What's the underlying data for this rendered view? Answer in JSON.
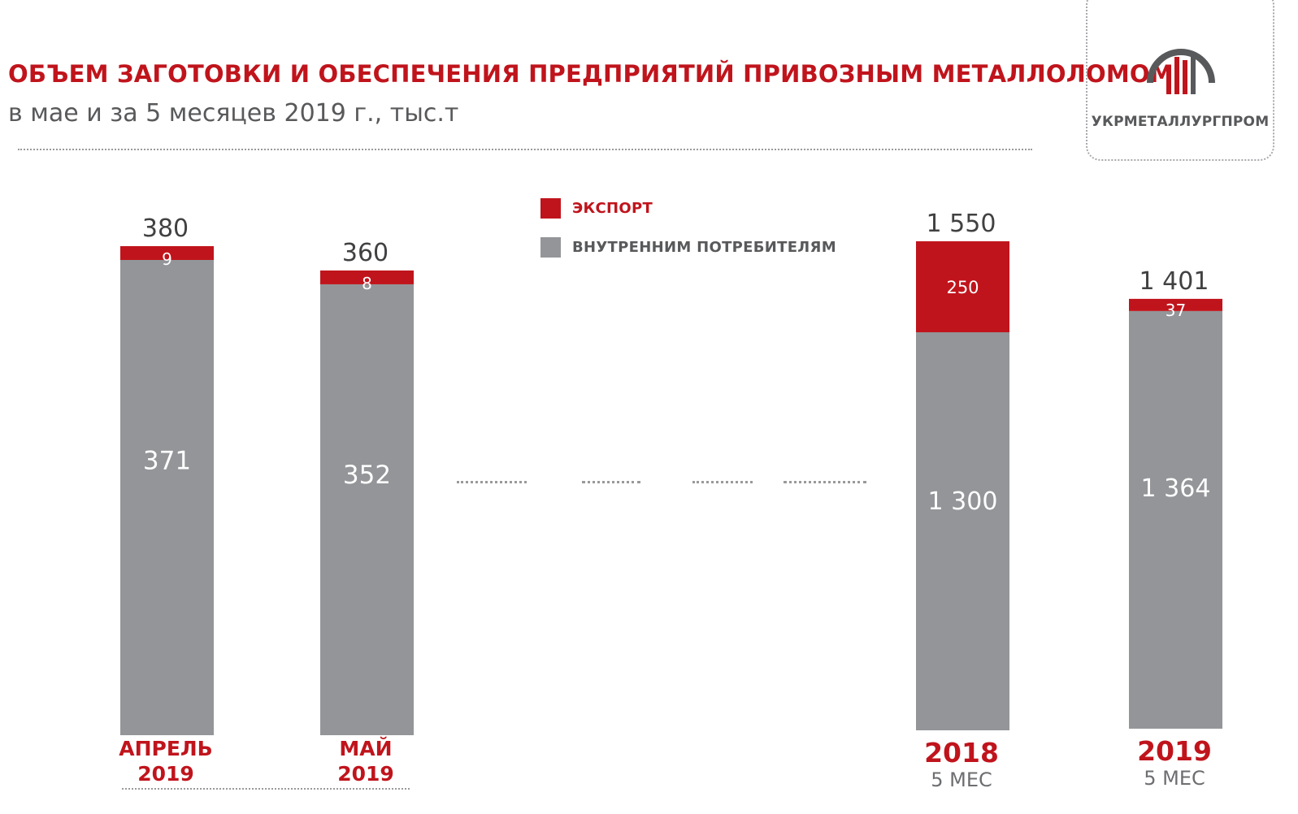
{
  "header": {
    "title": "ОБЪЕМ ЗАГОТОВКИ И ОБЕСПЕЧЕНИЯ ПРЕДПРИЯТИЙ ПРИВОЗНЫМ МЕТАЛЛОЛОМОМ",
    "subtitle": "в мае и за 5 месяцев 2019 г., тыс.т"
  },
  "logo": {
    "text": "УКРМЕТАЛЛУРГПРОМ",
    "icon": "ukrmetallurgprom-logo-icon"
  },
  "colors": {
    "export": "#c0141c",
    "domestic": "#939598",
    "title": "#c0141c",
    "text": "#58595b"
  },
  "chart_data": {
    "type": "bar",
    "stacked": true,
    "title": "ОБЪЕМ ЗАГОТОВКИ И ОБЕСПЕЧЕНИЯ ПРЕДПРИЯТИЙ ПРИВОЗНЫМ МЕТАЛЛОЛОМОМ",
    "subtitle": "в мае и за 5 месяцев 2019 г., тыс.т",
    "categories": [
      "АПРЕЛЬ 2019",
      "МАЙ 2019",
      "2018 5 МЕС",
      "2019 5 МЕС"
    ],
    "category_labels": [
      {
        "line1": "АПРЕЛЬ",
        "line2": "2019"
      },
      {
        "line1": "МАЙ",
        "line2": "2019"
      },
      {
        "line1": "2018",
        "line2": "5 МЕС"
      },
      {
        "line1": "2019",
        "line2": "5 МЕС"
      }
    ],
    "series": [
      {
        "name": "ВНУТРЕННИМ ПОТРЕБИТЕЛЯМ",
        "values": [
          371,
          352,
          1300,
          1364
        ],
        "labels": [
          "371",
          "352",
          "1 300",
          "1 364"
        ]
      },
      {
        "name": "ЭКСПОРТ",
        "values": [
          9,
          8,
          250,
          37
        ],
        "labels": [
          "9",
          "8",
          "250",
          "37"
        ]
      }
    ],
    "totals": [
      380,
      360,
      1550,
      1401
    ],
    "total_labels": [
      "380",
      "360",
      "1 550",
      "1 401"
    ],
    "legend": {
      "position": "top-center",
      "items": [
        "ЭКСПОРТ",
        "ВНУТРЕННИМ ПОТРЕБИТЕЛЯМ"
      ]
    },
    "grid": false,
    "axis_break": true
  }
}
